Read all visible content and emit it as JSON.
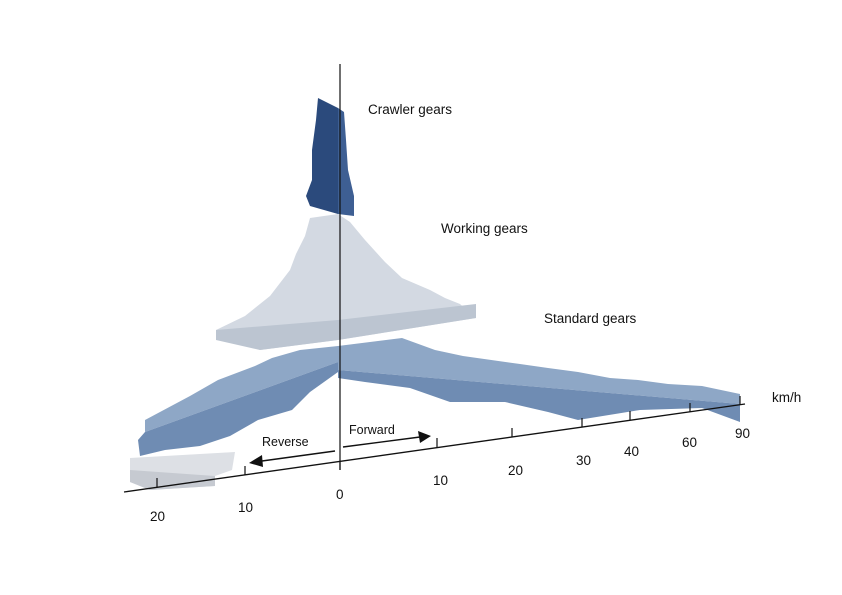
{
  "diagram": {
    "groups": {
      "crawler": "Crawler gears",
      "working": "Working gears",
      "standard": "Standard gears"
    },
    "axis": {
      "unit": "km/h",
      "forward_ticks": [
        "0",
        "10",
        "20",
        "30",
        "40",
        "60",
        "90"
      ],
      "reverse_ticks": [
        "10",
        "20"
      ]
    },
    "direction": {
      "forward": "Forward",
      "reverse": "Reverse"
    },
    "colors": {
      "crawler": "#2c4b7e",
      "working": "#c9d1dc",
      "standard": "#7f99bb",
      "reverse_light": "#d6d9de",
      "axis": "#111111"
    }
  }
}
